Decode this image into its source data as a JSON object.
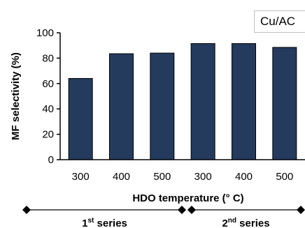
{
  "chart_data": {
    "type": "bar",
    "title": "",
    "categories": [
      "300",
      "400",
      "500",
      "300",
      "400",
      "500"
    ],
    "series": [
      {
        "values": [
          64,
          83.5,
          84,
          91.5,
          91.5,
          88.5
        ]
      }
    ],
    "annotation": "Cu/AC",
    "xlabel": "HDO temperature (° C)",
    "ylabel": "MF selectivity (%)",
    "ylim": [
      0,
      100
    ],
    "yticks": [
      0,
      20,
      40,
      60,
      80,
      100
    ],
    "grid": false,
    "bar_color": "#243b5e",
    "groups": [
      {
        "label_base": "1",
        "label_sup": "st",
        "label_rest": " series",
        "span": [
          0,
          2
        ]
      },
      {
        "label_base": "2",
        "label_sup": "nd",
        "label_rest": " series",
        "span": [
          3,
          5
        ]
      }
    ]
  }
}
